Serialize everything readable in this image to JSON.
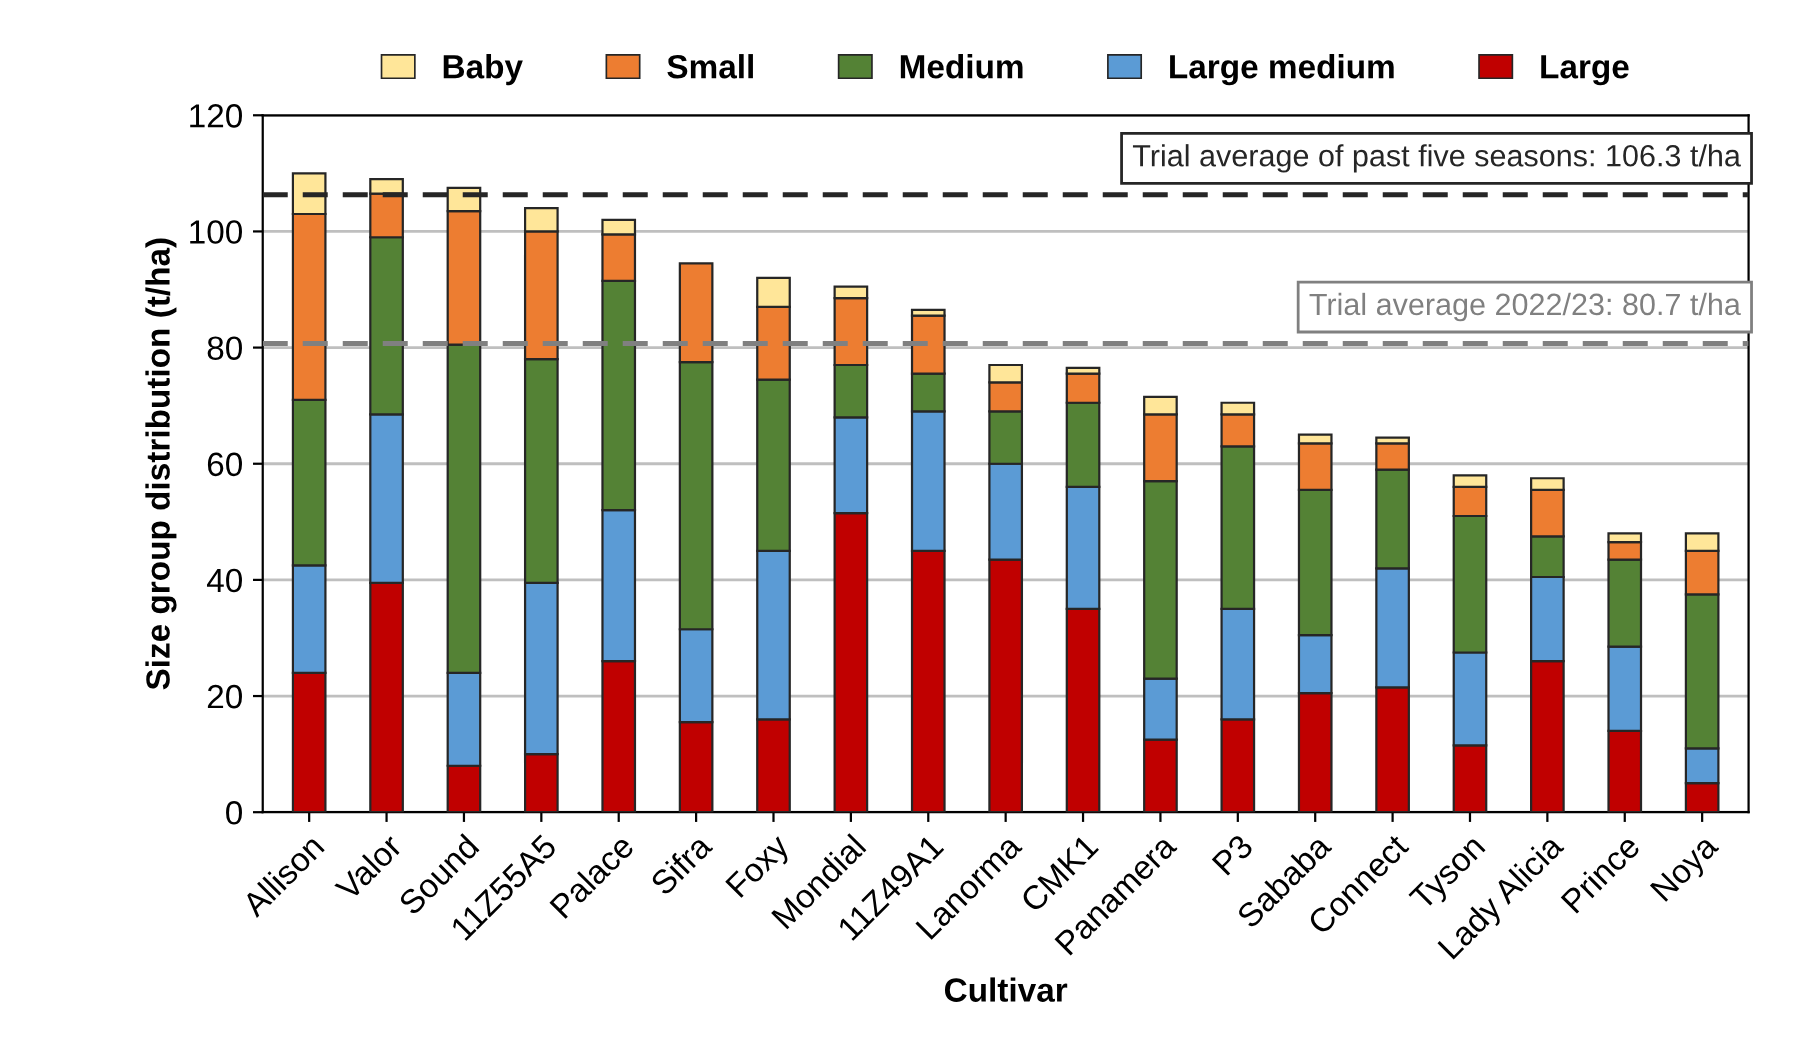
{
  "chart_data": {
    "type": "bar",
    "stacked": true,
    "xlabel": "Cultivar",
    "ylabel": "Size group distribution (t/ha)",
    "categories": [
      "Allison",
      "Valor",
      "Sound",
      "11Z55A5",
      "Palace",
      "Sifra",
      "Foxy",
      "Mondial",
      "11Z49A1",
      "Lanorma",
      "CMK1",
      "Panamera",
      "P3",
      "Sababa",
      "Connect",
      "Tyson",
      "Lady Alicia",
      "Prince",
      "Noya"
    ],
    "series": [
      {
        "name": "Large",
        "color": "#c00000",
        "values": [
          24,
          39.5,
          8,
          10,
          26,
          15.5,
          16,
          51.5,
          45,
          43.5,
          35,
          12.5,
          16,
          20.5,
          21.5,
          11.5,
          26,
          14,
          5
        ]
      },
      {
        "name": "Large medium",
        "color": "#5b9bd5",
        "values": [
          18.5,
          29,
          16,
          29.5,
          26,
          16,
          29,
          16.5,
          24,
          16.5,
          21,
          10.5,
          19,
          10,
          20.5,
          16,
          14.5,
          14.5,
          6
        ]
      },
      {
        "name": "Medium",
        "color": "#548235",
        "values": [
          28.5,
          30.5,
          56.5,
          38.5,
          39.5,
          46,
          29.5,
          9,
          6.5,
          9,
          14.5,
          34,
          28,
          25,
          17,
          23.5,
          7,
          15,
          26.5
        ]
      },
      {
        "name": "Small",
        "color": "#ed7d31",
        "values": [
          32,
          7.5,
          23,
          22,
          8,
          17,
          12.5,
          11.5,
          10,
          5,
          5,
          11.5,
          5.5,
          8,
          4.5,
          5,
          8,
          3,
          7.5
        ]
      },
      {
        "name": "Baby",
        "color": "#ffe699",
        "values": [
          7,
          2.5,
          4,
          4,
          2.5,
          null,
          5,
          2,
          1,
          3,
          1,
          3,
          2,
          1.5,
          1,
          2,
          2,
          1.5,
          3
        ]
      }
    ],
    "ylim": [
      0,
      120
    ],
    "yticks": [
      0,
      20,
      40,
      60,
      80,
      100,
      120
    ],
    "grid": "y",
    "legend": "top",
    "ref_lines": [
      {
        "axis": "y",
        "value": 106.3,
        "label": "Trial average of past five seasons: 106.3 t/ha",
        "color": "#262626",
        "line_style": "dashed"
      },
      {
        "axis": "y",
        "value": 80.7,
        "label": "Trial average 2022/23: 80.7 t/ha",
        "color": "#808080",
        "line_style": "dashed"
      }
    ]
  }
}
